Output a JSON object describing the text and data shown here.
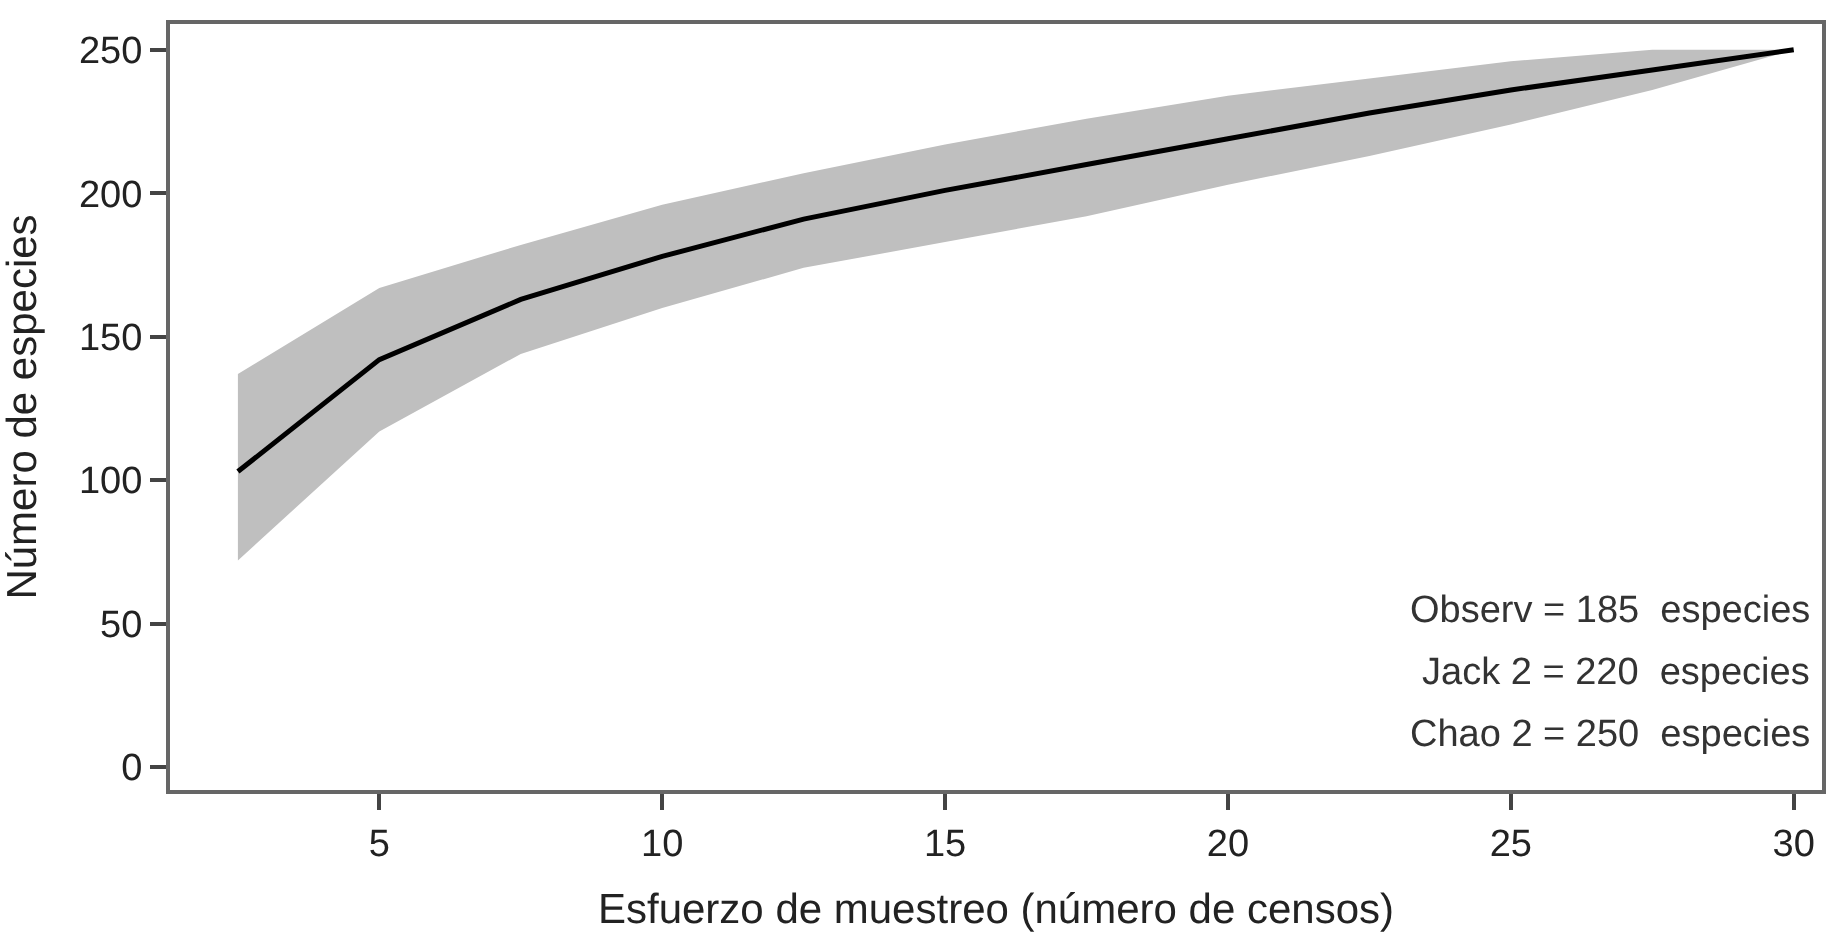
{
  "chart_data": {
    "type": "line",
    "xlabel": "Esfuerzo de muestreo (número de censos)",
    "ylabel": "Número de especies",
    "x": [
      2.5,
      5,
      7.5,
      10,
      12.5,
      15,
      17.5,
      20,
      22.5,
      25,
      27.5,
      30
    ],
    "series": [
      {
        "color": "#000000",
        "values": [
          103,
          142,
          163,
          178,
          191,
          201,
          210,
          219,
          228,
          236,
          243,
          250
        ],
        "lower": [
          72,
          117,
          144,
          160,
          174,
          183,
          192,
          203,
          213,
          224,
          236,
          250
        ],
        "upper": [
          137,
          167,
          182,
          196,
          207,
          217,
          226,
          234,
          240,
          246,
          250,
          250
        ]
      }
    ],
    "xlim": [
      1.3,
      30.5
    ],
    "ylim": [
      -8,
      259
    ],
    "xticks": [
      5,
      10,
      15,
      20,
      25,
      30
    ],
    "yticks": [
      0,
      50,
      100,
      150,
      200,
      250
    ],
    "marker": "none",
    "line_style": "solid",
    "annotations": [
      "Observ = 185  especies",
      "Jack 2 = 220  especies",
      "Chao 2 = 250  especies"
    ]
  }
}
